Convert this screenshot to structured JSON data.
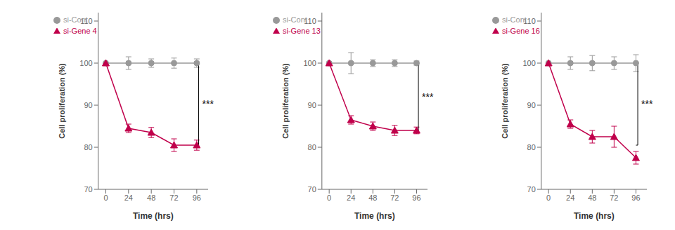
{
  "chart_data": [
    {
      "type": "line",
      "x": [
        0,
        24,
        48,
        72,
        96
      ],
      "series": [
        {
          "name": "si-Cont",
          "color": "#999999",
          "marker": "circle",
          "values": [
            100,
            100,
            100,
            100,
            100
          ],
          "errors": [
            0,
            1.5,
            1.0,
            1.2,
            1.0
          ]
        },
        {
          "name": "si-Gene 4",
          "color": "#C0004B",
          "marker": "triangle",
          "values": [
            100,
            84.5,
            83.5,
            80.5,
            80.5
          ],
          "errors": [
            0,
            1.0,
            1.2,
            1.5,
            1.2
          ]
        }
      ],
      "xlabel": "Time (hrs)",
      "ylabel": "Cell proliferation (%)",
      "xlim": [
        -8,
        108
      ],
      "ylim": [
        70,
        112
      ],
      "xticks": [
        0,
        24,
        48,
        72,
        96
      ],
      "yticks": [
        70,
        80,
        90,
        100,
        110
      ],
      "legend": "upper left",
      "grid": false,
      "annotations": [
        {
          "text": "***",
          "x": 98,
          "y": [
            100,
            80.5
          ]
        }
      ]
    },
    {
      "type": "line",
      "x": [
        0,
        24,
        48,
        72,
        96
      ],
      "series": [
        {
          "name": "si-Cont",
          "color": "#999999",
          "marker": "circle",
          "values": [
            100,
            100,
            100,
            100,
            100
          ],
          "errors": [
            0,
            2.5,
            0.8,
            0.8,
            0.5
          ]
        },
        {
          "name": "si-Gene 13",
          "color": "#C0004B",
          "marker": "triangle",
          "values": [
            100,
            86.5,
            85.0,
            84.0,
            84.0
          ],
          "errors": [
            0,
            1.0,
            1.0,
            1.2,
            0.8
          ]
        }
      ],
      "xlabel": "Time (hrs)",
      "ylabel": "Cell proliferation (%)",
      "xlim": [
        -8,
        108
      ],
      "ylim": [
        70,
        112
      ],
      "xticks": [
        0,
        24,
        48,
        72,
        96
      ],
      "yticks": [
        70,
        80,
        90,
        100,
        110
      ],
      "legend": "upper left",
      "grid": false,
      "annotations": [
        {
          "text": "***",
          "x": 98,
          "y": [
            100,
            84.0
          ]
        }
      ]
    },
    {
      "type": "line",
      "x": [
        0,
        24,
        48,
        72,
        96
      ],
      "series": [
        {
          "name": "si-Cont",
          "color": "#999999",
          "marker": "circle",
          "values": [
            100,
            100,
            100,
            100,
            100
          ],
          "errors": [
            0,
            1.5,
            1.8,
            1.5,
            2.0
          ]
        },
        {
          "name": "si-Gene 16",
          "color": "#C0004B",
          "marker": "triangle",
          "values": [
            100,
            85.5,
            82.5,
            82.5,
            77.5
          ],
          "errors": [
            0,
            1.0,
            1.5,
            2.5,
            1.5
          ]
        }
      ],
      "xlabel": "Time (hrs)",
      "ylabel": "Cell proliferation (%)",
      "xlim": [
        -8,
        108
      ],
      "ylim": [
        70,
        112
      ],
      "xticks": [
        0,
        24,
        48,
        72,
        96
      ],
      "yticks": [
        70,
        80,
        90,
        100,
        110
      ],
      "legend": "upper left",
      "grid": false,
      "annotations": [
        {
          "text": "***",
          "x": 98,
          "y": [
            100,
            80.5
          ]
        }
      ]
    }
  ]
}
